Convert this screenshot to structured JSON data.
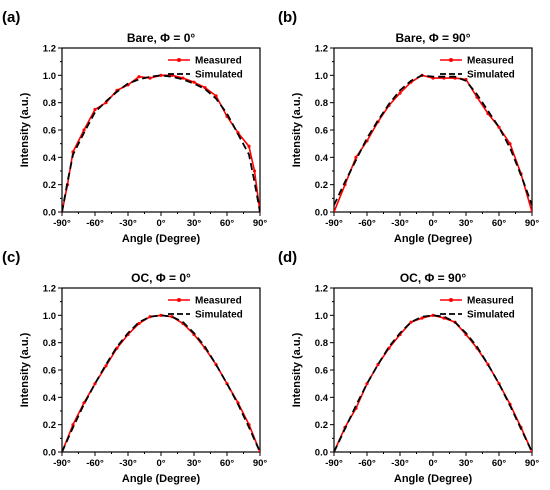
{
  "chart_data": [
    {
      "panel_label": "(a)",
      "type": "line",
      "title": "Bare, Φ = 0°",
      "xlabel": "Angle (Degree)",
      "ylabel": "Intensity (a.u.)",
      "xlim": [
        -90,
        90
      ],
      "ylim": [
        0,
        1.2
      ],
      "xticks": [
        -90,
        -60,
        -30,
        0,
        30,
        60,
        90
      ],
      "xtick_labels": [
        "-90°",
        "-60°",
        "-30°",
        "0°",
        "30°",
        "60°",
        "90°"
      ],
      "yticks": [
        0.0,
        0.2,
        0.4,
        0.6,
        0.8,
        1.0,
        1.2
      ],
      "ytick_labels": [
        "0.0",
        "0.2",
        "0.4",
        "0.6",
        "0.8",
        "1.0",
        "1.2"
      ],
      "legend_position": "top-right",
      "series": [
        {
          "name": "Measured",
          "color": "#ff0000",
          "style": "solid-marker",
          "x": [
            -90,
            -85,
            -80,
            -70,
            -60,
            -50,
            -40,
            -30,
            -20,
            -10,
            0,
            10,
            20,
            30,
            40,
            50,
            60,
            70,
            80,
            85,
            90
          ],
          "y": [
            0.0,
            0.2,
            0.44,
            0.6,
            0.75,
            0.8,
            0.89,
            0.93,
            0.99,
            0.98,
            1.0,
            1.0,
            0.98,
            0.95,
            0.91,
            0.85,
            0.7,
            0.58,
            0.48,
            0.3,
            0.0
          ]
        },
        {
          "name": "Simulated",
          "color": "#000000",
          "style": "dashed",
          "x": [
            -90,
            -85,
            -80,
            -70,
            -60,
            -50,
            -40,
            -30,
            -20,
            -10,
            0,
            10,
            20,
            30,
            40,
            50,
            60,
            70,
            80,
            85,
            90
          ],
          "y": [
            0.0,
            0.22,
            0.42,
            0.58,
            0.73,
            0.81,
            0.88,
            0.94,
            0.97,
            0.99,
            1.0,
            0.99,
            0.97,
            0.94,
            0.9,
            0.83,
            0.72,
            0.57,
            0.42,
            0.22,
            0.0
          ]
        }
      ]
    },
    {
      "panel_label": "(b)",
      "type": "line",
      "title": "Bare, Φ = 90°",
      "xlabel": "Angle (Degree)",
      "ylabel": "Intensity (a.u.)",
      "xlim": [
        -90,
        90
      ],
      "ylim": [
        0,
        1.2
      ],
      "xticks": [
        -90,
        -60,
        -30,
        0,
        30,
        60,
        90
      ],
      "xtick_labels": [
        "-90°",
        "-60°",
        "-30°",
        "0°",
        "30°",
        "60°",
        "90°"
      ],
      "yticks": [
        0.0,
        0.2,
        0.4,
        0.6,
        0.8,
        1.0,
        1.2
      ],
      "ytick_labels": [
        "0.0",
        "0.2",
        "0.4",
        "0.6",
        "0.8",
        "1.0",
        "1.2"
      ],
      "legend_position": "top-right",
      "series": [
        {
          "name": "Measured",
          "color": "#ff0000",
          "style": "solid-marker",
          "x": [
            -90,
            -80,
            -70,
            -60,
            -50,
            -40,
            -30,
            -20,
            -10,
            0,
            10,
            20,
            30,
            40,
            50,
            60,
            70,
            80,
            90
          ],
          "y": [
            0.0,
            0.2,
            0.4,
            0.52,
            0.66,
            0.78,
            0.87,
            0.95,
            1.0,
            0.98,
            0.98,
            0.98,
            0.97,
            0.84,
            0.72,
            0.62,
            0.5,
            0.28,
            0.0
          ]
        },
        {
          "name": "Simulated",
          "color": "#000000",
          "style": "dashed",
          "x": [
            -90,
            -80,
            -70,
            -60,
            -50,
            -40,
            -30,
            -20,
            -10,
            0,
            10,
            20,
            30,
            40,
            50,
            60,
            70,
            80,
            90
          ],
          "y": [
            0.05,
            0.22,
            0.38,
            0.54,
            0.67,
            0.79,
            0.89,
            0.96,
            1.0,
            0.99,
            0.99,
            0.99,
            0.96,
            0.86,
            0.74,
            0.62,
            0.47,
            0.27,
            0.05
          ]
        }
      ]
    },
    {
      "panel_label": "(c)",
      "type": "line",
      "title": "OC, Φ = 0°",
      "xlabel": "Angle (Degree)",
      "ylabel": "Intensity (a.u.)",
      "xlim": [
        -90,
        90
      ],
      "ylim": [
        0,
        1.2
      ],
      "xticks": [
        -90,
        -60,
        -30,
        0,
        30,
        60,
        90
      ],
      "xtick_labels": [
        "-90°",
        "-60°",
        "-30°",
        "0°",
        "30°",
        "60°",
        "90°"
      ],
      "yticks": [
        0.0,
        0.2,
        0.4,
        0.6,
        0.8,
        1.0,
        1.2
      ],
      "ytick_labels": [
        "0.0",
        "0.2",
        "0.4",
        "0.6",
        "0.8",
        "1.0",
        "1.2"
      ],
      "legend_position": "top-right",
      "series": [
        {
          "name": "Measured",
          "color": "#ff0000",
          "style": "solid-marker",
          "x": [
            -90,
            -80,
            -70,
            -60,
            -50,
            -40,
            -30,
            -20,
            -10,
            0,
            10,
            20,
            30,
            40,
            50,
            60,
            70,
            80,
            90
          ],
          "y": [
            0.0,
            0.2,
            0.36,
            0.5,
            0.63,
            0.76,
            0.86,
            0.94,
            0.99,
            1.0,
            0.99,
            0.94,
            0.86,
            0.76,
            0.64,
            0.5,
            0.36,
            0.2,
            0.0
          ]
        },
        {
          "name": "Simulated",
          "color": "#000000",
          "style": "dashed",
          "x": [
            -90,
            -80,
            -70,
            -60,
            -50,
            -40,
            -30,
            -20,
            -10,
            0,
            10,
            20,
            30,
            40,
            50,
            60,
            70,
            80,
            90
          ],
          "y": [
            0.0,
            0.18,
            0.35,
            0.5,
            0.64,
            0.77,
            0.87,
            0.95,
            0.99,
            1.0,
            0.99,
            0.95,
            0.87,
            0.77,
            0.64,
            0.5,
            0.35,
            0.18,
            0.0
          ]
        }
      ]
    },
    {
      "panel_label": "(d)",
      "type": "line",
      "title": "OC, Φ = 90°",
      "xlabel": "Angle (Degree)",
      "ylabel": "Intensity (a.u.)",
      "xlim": [
        -90,
        90
      ],
      "ylim": [
        0,
        1.2
      ],
      "xticks": [
        -90,
        -60,
        -30,
        0,
        30,
        60,
        90
      ],
      "xtick_labels": [
        "-90°",
        "-60°",
        "-30°",
        "0°",
        "30°",
        "60°",
        "90°"
      ],
      "yticks": [
        0.0,
        0.2,
        0.4,
        0.6,
        0.8,
        1.0,
        1.2
      ],
      "ytick_labels": [
        "0.0",
        "0.2",
        "0.4",
        "0.6",
        "0.8",
        "1.0",
        "1.2"
      ],
      "legend_position": "top-right",
      "series": [
        {
          "name": "Measured",
          "color": "#ff0000",
          "style": "solid-marker",
          "x": [
            -90,
            -80,
            -70,
            -60,
            -50,
            -40,
            -30,
            -20,
            -10,
            0,
            10,
            20,
            30,
            40,
            50,
            60,
            70,
            80,
            90
          ],
          "y": [
            0.0,
            0.18,
            0.32,
            0.5,
            0.64,
            0.76,
            0.86,
            0.95,
            0.98,
            1.0,
            0.98,
            0.95,
            0.86,
            0.76,
            0.64,
            0.5,
            0.35,
            0.18,
            0.0
          ]
        },
        {
          "name": "Simulated",
          "color": "#000000",
          "style": "dashed",
          "x": [
            -90,
            -80,
            -70,
            -60,
            -50,
            -40,
            -30,
            -20,
            -10,
            0,
            10,
            20,
            30,
            40,
            50,
            60,
            70,
            80,
            90
          ],
          "y": [
            0.0,
            0.17,
            0.34,
            0.5,
            0.64,
            0.77,
            0.87,
            0.95,
            0.99,
            1.0,
            0.99,
            0.95,
            0.87,
            0.77,
            0.64,
            0.5,
            0.34,
            0.17,
            0.0
          ]
        }
      ]
    }
  ]
}
